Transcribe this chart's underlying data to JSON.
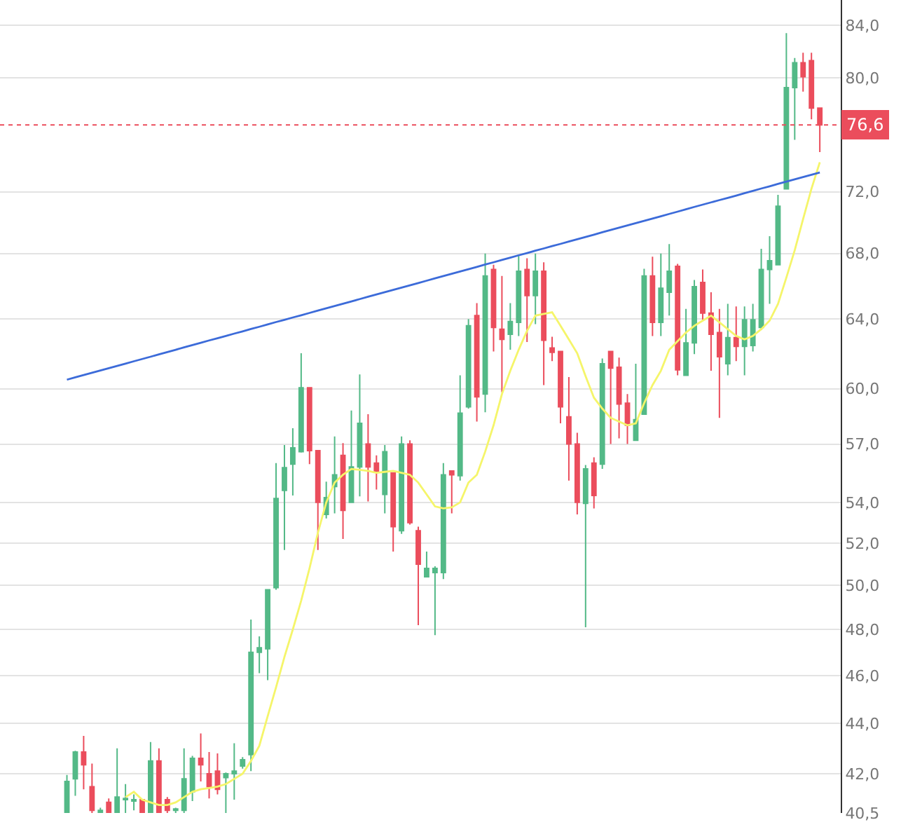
{
  "chart_data": {
    "type": "candlestick",
    "categories": [
      null,
      null,
      null,
      null,
      null,
      null,
      null,
      null,
      null,
      null,
      null,
      null,
      null,
      null,
      null,
      null,
      null,
      null,
      null,
      null,
      null,
      null,
      null,
      null,
      null,
      null,
      null,
      null,
      null,
      null,
      null,
      null,
      null,
      null,
      null,
      null,
      null,
      null,
      null,
      null,
      null,
      null,
      null,
      null,
      null,
      null,
      null,
      null,
      null,
      null,
      null,
      null,
      null,
      null,
      null,
      null,
      null,
      null,
      null,
      null,
      null,
      null,
      null,
      null,
      null,
      null,
      null,
      null,
      null,
      null,
      null,
      null,
      null,
      null,
      null,
      null,
      null,
      null,
      null,
      null,
      null,
      null,
      null,
      null,
      null,
      null,
      null,
      null,
      null,
      null,
      null
    ],
    "colors": [
      "#53b987",
      "#53b987",
      "#eb4d5c",
      "#eb4d5c",
      "#53b987",
      "#eb4d5c",
      "#53b987",
      "#53b987",
      "#53b987",
      "#eb4d5c",
      "#53b987",
      "#eb4d5c",
      "#eb4d5c",
      "#53b987",
      "#53b987",
      "#53b987",
      "#eb4d5c",
      "#eb4d5c",
      "#eb4d5c",
      "#53b987",
      "#53b987",
      "#53b987",
      "#53b987",
      "#53b987",
      "#53b987",
      "#53b987",
      "#53b987",
      "#53b987",
      "#53b987",
      "#eb4d5c",
      "#eb4d5c",
      "#53b987",
      "#53b987",
      "#eb4d5c",
      "#53b987",
      "#53b987",
      "#eb4d5c",
      "#eb4d5c",
      "#53b987",
      "#eb4d5c",
      "#53b987",
      "#eb4d5c",
      "#eb4d5c",
      "#53b987",
      "#53b987",
      "#53b987",
      "#eb4d5c",
      "#53b987",
      "#53b987",
      "#eb4d5c",
      "#53b987",
      "#eb4d5c",
      "#eb4d5c",
      "#53b987",
      "#53b987",
      "#eb4d5c",
      "#53b987",
      "#eb4d5c",
      "#eb4d5c",
      "#eb4d5c",
      "#eb4d5c",
      "#eb4d5c",
      "#53b987",
      "#eb4d5c",
      "#53b987",
      "#eb4d5c",
      "#eb4d5c",
      "#eb4d5c",
      "#53b987",
      "#53b987",
      "#eb4d5c",
      "#53b987",
      "#53b987",
      "#eb4d5c",
      "#53b987",
      "#53b987",
      "#eb4d5c",
      "#eb4d5c",
      "#eb4d5c",
      "#53b987",
      "#eb4d5c",
      "#53b987",
      "#53b987",
      "#53b987",
      "#53b987",
      "#53b987",
      "#53b987",
      "#53b987",
      "#eb4d5c",
      "#eb4d5c",
      "#eb4d5c"
    ],
    "ohlc": [
      [
        40.5,
        41.95,
        40.5,
        41.7
      ],
      [
        41.8,
        42.9,
        41.15,
        42.85
      ],
      [
        42.85,
        43.5,
        41.4,
        42.35
      ],
      [
        41.5,
        42.4,
        40.5,
        40.6
      ],
      [
        40.5,
        40.7,
        40.5,
        40.6
      ],
      [
        40.9,
        41.05,
        40.5,
        40.5
      ],
      [
        40.5,
        43.0,
        40.5,
        41.1
      ],
      [
        41.0,
        41.6,
        40.5,
        41.05
      ],
      [
        40.95,
        41.2,
        40.6,
        41.0
      ],
      [
        41.0,
        41.0,
        40.5,
        40.5
      ],
      [
        40.5,
        43.25,
        40.5,
        42.5
      ],
      [
        42.5,
        43.0,
        40.5,
        40.5
      ],
      [
        41.0,
        41.1,
        40.5,
        40.6
      ],
      [
        40.6,
        40.7,
        40.5,
        40.65
      ],
      [
        40.6,
        43.0,
        40.5,
        41.8
      ],
      [
        41.3,
        42.7,
        40.95,
        42.6
      ],
      [
        42.6,
        43.6,
        41.7,
        42.35
      ],
      [
        42.0,
        42.85,
        41.05,
        41.5
      ],
      [
        42.1,
        42.8,
        41.2,
        41.4
      ],
      [
        41.85,
        42.05,
        40.5,
        42.0
      ],
      [
        42.0,
        43.2,
        41.0,
        42.1
      ],
      [
        42.3,
        42.65,
        42.2,
        42.55
      ],
      [
        42.75,
        48.45,
        42.1,
        47.0
      ],
      [
        47.0,
        47.7,
        46.1,
        47.2
      ],
      [
        47.15,
        49.8,
        45.8,
        49.8
      ],
      [
        49.9,
        56.0,
        49.8,
        54.2
      ],
      [
        54.6,
        56.95,
        51.67,
        55.77
      ],
      [
        55.95,
        57.84,
        54.35,
        56.8
      ],
      [
        56.6,
        62.0,
        56.55,
        60.05
      ],
      [
        60.05,
        60.05,
        55.95,
        56.65
      ],
      [
        56.65,
        56.65,
        51.67,
        54.0
      ],
      [
        53.4,
        55.05,
        53.2,
        54.24
      ],
      [
        54.8,
        57.4,
        53.45,
        55.4
      ],
      [
        56.4,
        57.05,
        52.2,
        53.6
      ],
      [
        54.0,
        58.8,
        54.0,
        55.8
      ],
      [
        55.8,
        60.8,
        54.3,
        58.1
      ],
      [
        57.0,
        58.6,
        54.05,
        55.8
      ],
      [
        56.0,
        56.4,
        54.65,
        55.6
      ],
      [
        54.4,
        56.95,
        53.45,
        56.6
      ],
      [
        55.5,
        55.5,
        51.6,
        52.8
      ],
      [
        52.6,
        57.4,
        52.45,
        57.0
      ],
      [
        57.0,
        57.2,
        52.9,
        53.0
      ],
      [
        52.6,
        52.8,
        48.2,
        51.0
      ],
      [
        50.4,
        51.6,
        50.4,
        50.8
      ],
      [
        50.6,
        50.9,
        47.75,
        50.8
      ],
      [
        50.6,
        56.0,
        50.3,
        55.4
      ],
      [
        55.6,
        55.6,
        53.45,
        55.4
      ],
      [
        55.35,
        60.75,
        55.1,
        58.65
      ],
      [
        59.0,
        64.0,
        58.9,
        63.6
      ],
      [
        64.2,
        64.95,
        58.2,
        59.55
      ],
      [
        59.7,
        68.0,
        58.7,
        66.6
      ],
      [
        67.0,
        67.3,
        62.1,
        63.5
      ],
      [
        63.4,
        66.6,
        59.8,
        62.8
      ],
      [
        63.1,
        64.95,
        62.2,
        63.85
      ],
      [
        63.8,
        67.85,
        63.0,
        66.9
      ],
      [
        67.0,
        67.7,
        62.65,
        65.4
      ],
      [
        65.4,
        68.0,
        63.7,
        66.9
      ],
      [
        66.9,
        67.45,
        60.2,
        62.75
      ],
      [
        62.3,
        62.95,
        61.55,
        62.05
      ],
      [
        62.1,
        62.1,
        58.1,
        59.0
      ],
      [
        58.45,
        60.65,
        55.1,
        57.0
      ],
      [
        57.0,
        57.6,
        53.4,
        54.0
      ],
      [
        53.95,
        55.9,
        48.1,
        55.7
      ],
      [
        56.0,
        56.3,
        53.7,
        54.35
      ],
      [
        55.95,
        61.7,
        55.7,
        61.4
      ],
      [
        62.1,
        62.1,
        57.0,
        61.15
      ],
      [
        61.2,
        61.75,
        57.3,
        59.15
      ],
      [
        59.2,
        59.7,
        57.0,
        58.0
      ],
      [
        57.2,
        61.4,
        57.2,
        58.3
      ],
      [
        58.6,
        67.05,
        58.6,
        66.6
      ],
      [
        66.6,
        67.8,
        63.0,
        63.8
      ],
      [
        63.8,
        68.0,
        63.0,
        65.85
      ],
      [
        65.6,
        68.6,
        64.2,
        66.9
      ],
      [
        67.2,
        67.35,
        60.75,
        61.05
      ],
      [
        60.75,
        64.6,
        60.75,
        62.6
      ],
      [
        62.6,
        66.35,
        61.95,
        65.95
      ],
      [
        66.2,
        67.0,
        63.95,
        64.35
      ],
      [
        64.35,
        65.6,
        61.0,
        63.1
      ],
      [
        63.2,
        64.6,
        58.4,
        61.8
      ],
      [
        61.4,
        64.9,
        60.75,
        62.9
      ],
      [
        62.9,
        64.75,
        61.55,
        62.4
      ],
      [
        62.4,
        64.75,
        60.75,
        63.95
      ],
      [
        62.45,
        64.9,
        62.1,
        63.95
      ],
      [
        63.5,
        68.3,
        63.35,
        67.0
      ],
      [
        67.0,
        69.1,
        64.9,
        67.55
      ],
      [
        67.3,
        71.8,
        67.3,
        71.05
      ],
      [
        72.2,
        83.4,
        72.2,
        79.3
      ],
      [
        79.3,
        81.5,
        75.55,
        81.15
      ],
      [
        81.15,
        81.9,
        79.0,
        80.1
      ],
      [
        81.3,
        81.9,
        77.0,
        77.8
      ],
      [
        77.8,
        77.8,
        74.7,
        76.6
      ]
    ],
    "series": [
      {
        "type": "line",
        "color": "#f5f56a",
        "values": [
          null,
          null,
          null,
          null,
          null,
          null,
          null,
          41.1,
          41.3,
          41.0,
          40.9,
          40.8,
          40.8,
          40.9,
          41.1,
          41.3,
          41.4,
          41.45,
          41.5,
          41.6,
          41.8,
          42.0,
          42.5,
          43.1,
          44.3,
          45.5,
          46.8,
          48.0,
          49.3,
          50.8,
          52.5,
          54.0,
          55.0,
          55.4,
          55.7,
          55.65,
          55.6,
          55.5,
          55.55,
          55.6,
          55.5,
          55.4,
          55.0,
          54.4,
          53.8,
          53.7,
          53.75,
          54.0,
          55.0,
          55.4,
          56.6,
          58.0,
          59.7,
          61.0,
          62.2,
          63.3,
          64.2,
          64.3,
          64.4,
          63.6,
          62.8,
          62.0,
          60.7,
          59.5,
          58.9,
          58.4,
          58.2,
          58.0,
          58.1,
          59.2,
          60.2,
          61.0,
          62.2,
          62.7,
          63.2,
          63.6,
          63.9,
          64.2,
          63.8,
          63.4,
          63.0,
          62.8,
          63.0,
          63.4,
          63.9,
          64.9,
          66.5,
          68.2,
          70.2,
          72.2,
          74.0
        ]
      },
      {
        "type": "line",
        "color": "#3c6bd9",
        "values": [
          60.5,
          60.63,
          60.76,
          60.89,
          61.02,
          61.15,
          61.28,
          61.41,
          61.54,
          61.67,
          61.8,
          61.94,
          62.07,
          62.2,
          62.34,
          62.47,
          62.6,
          62.74,
          62.87,
          63.0,
          63.14,
          63.27,
          63.41,
          63.54,
          63.68,
          63.82,
          63.95,
          64.09,
          64.22,
          64.36,
          64.5,
          64.64,
          64.77,
          64.91,
          65.05,
          65.19,
          65.33,
          65.47,
          65.61,
          65.75,
          65.89,
          66.03,
          66.17,
          66.31,
          66.46,
          66.6,
          66.74,
          66.88,
          67.02,
          67.16,
          67.31,
          67.45,
          67.6,
          67.74,
          67.89,
          68.03,
          68.18,
          68.32,
          68.47,
          68.61,
          68.76,
          68.91,
          69.05,
          69.2,
          69.35,
          69.5,
          69.65,
          69.79,
          69.94,
          70.09,
          70.24,
          70.39,
          70.54,
          70.69,
          70.84,
          71.0,
          71.15,
          71.3,
          71.45,
          71.6,
          71.75,
          71.91,
          72.06,
          72.22,
          72.37,
          72.53,
          72.68,
          72.84,
          72.99,
          73.15,
          73.3
        ]
      }
    ],
    "ref_lines": [
      {
        "axis": "y",
        "value": 76.6,
        "label": "76,6",
        "color": "#eb4d5c",
        "line_style": "dotted"
      }
    ],
    "log": true,
    "grid": "y",
    "tick_labels": "y",
    "ylim": [
      40.5,
      86.0
    ],
    "yticks": [
      {
        "value": 40.5,
        "label": "40,5"
      },
      {
        "value": 42,
        "label": "42,0"
      },
      {
        "value": 44,
        "label": "44,0"
      },
      {
        "value": 46,
        "label": "46,0"
      },
      {
        "value": 48,
        "label": "48,0"
      },
      {
        "value": 50,
        "label": "50,0"
      },
      {
        "value": 52,
        "label": "52,0"
      },
      {
        "value": 54,
        "label": "54,0"
      },
      {
        "value": 57,
        "label": "57,0"
      },
      {
        "value": 60,
        "label": "60,0"
      },
      {
        "value": 64,
        "label": "64,0"
      },
      {
        "value": 68,
        "label": "68,0"
      },
      {
        "value": 72,
        "label": "72,0"
      },
      {
        "value": 80,
        "label": "80,0"
      },
      {
        "value": 84,
        "label": "84,0"
      }
    ]
  }
}
